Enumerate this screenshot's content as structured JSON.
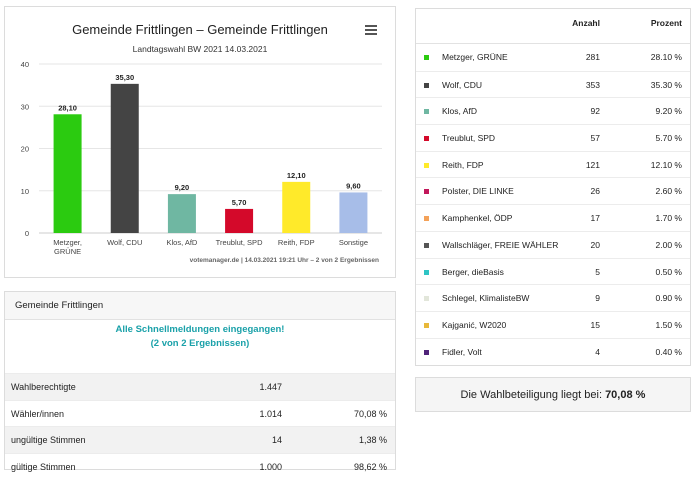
{
  "chart_panel": {
    "credit": "votemanager.de | 14.03.2021 19:21 Uhr – 2 von 2 Ergebnissen"
  },
  "chart_data": {
    "type": "bar",
    "title": "Gemeinde Frittlingen – Gemeinde Frittlingen",
    "subtitle": "Landtagswahl BW 2021 14.03.2021",
    "categories": [
      "Metzger, GRÜNE",
      "Wolf, CDU",
      "Klos, AfD",
      "Treublut, SPD",
      "Reith, FDP",
      "Sonstige"
    ],
    "category_lines": [
      [
        "Metzger,",
        "GRÜNE"
      ],
      [
        "Wolf, CDU"
      ],
      [
        "Klos, AfD"
      ],
      [
        "Treublut, SPD"
      ],
      [
        "Reith, FDP"
      ],
      [
        "Sonstige"
      ]
    ],
    "values": [
      28.1,
      35.3,
      9.2,
      5.7,
      12.1,
      9.6
    ],
    "value_labels": [
      "28,10",
      "35,30",
      "9,20",
      "5,70",
      "12,10",
      "9,60"
    ],
    "colors": [
      "#2bcb10",
      "#444444",
      "#6fb7a2",
      "#d4092a",
      "#ffea2a",
      "#a7bde8"
    ],
    "ylim": [
      0,
      40
    ],
    "yticks": [
      0,
      10,
      20,
      30,
      40
    ],
    "grid": true,
    "xlabel": "",
    "ylabel": ""
  },
  "info": {
    "header": "Gemeinde Frittlingen",
    "notice_line1": "Alle Schnellmeldungen eingegangen!",
    "notice_line2": "(2 von 2 Ergebnissen)",
    "rows": [
      {
        "label": "Wahlberechtigte",
        "value": "1.447",
        "percent": ""
      },
      {
        "label": "Wähler/innen",
        "value": "1.014",
        "percent": "70,08 %"
      },
      {
        "label": "ungültige Stimmen",
        "value": "14",
        "percent": "1,38 %"
      },
      {
        "label": "gültige Stimmen",
        "value": "1.000",
        "percent": "98,62 %"
      }
    ]
  },
  "results": {
    "col_count": "Anzahl",
    "col_percent": "Prozent",
    "rows": [
      {
        "party": "Metzger, GRÜNE",
        "count": "281",
        "percent": "28.10 %",
        "color": "#2bcb10"
      },
      {
        "party": "Wolf, CDU",
        "count": "353",
        "percent": "35.30 %",
        "color": "#444444"
      },
      {
        "party": "Klos, AfD",
        "count": "92",
        "percent": "9.20 %",
        "color": "#6fb7a2"
      },
      {
        "party": "Treublut, SPD",
        "count": "57",
        "percent": "5.70 %",
        "color": "#d4092a"
      },
      {
        "party": "Reith, FDP",
        "count": "121",
        "percent": "12.10 %",
        "color": "#ffea2a"
      },
      {
        "party": "Polster, DIE LINKE",
        "count": "26",
        "percent": "2.60 %",
        "color": "#c2185b"
      },
      {
        "party": "Kamphenkel, ÖDP",
        "count": "17",
        "percent": "1.70 %",
        "color": "#f4a259"
      },
      {
        "party": "Wallschläger, FREIE WÄHLER",
        "count": "20",
        "percent": "2.00 %",
        "color": "#555555"
      },
      {
        "party": "Berger, dieBasis",
        "count": "5",
        "percent": "0.50 %",
        "color": "#2ec4c4"
      },
      {
        "party": "Schlegel, KlimalisteBW",
        "count": "9",
        "percent": "0.90 %",
        "color": "#e2e6da"
      },
      {
        "party": "Kajganić, W2020",
        "count": "15",
        "percent": "1.50 %",
        "color": "#e8b83a"
      },
      {
        "party": "Fidler, Volt",
        "count": "4",
        "percent": "0.40 %",
        "color": "#502379"
      }
    ]
  },
  "turnout": {
    "text": "Die Wahlbeteiligung liegt bei:",
    "value": "70,08 %"
  },
  "icons": {
    "menu": "hamburger-menu-icon"
  }
}
